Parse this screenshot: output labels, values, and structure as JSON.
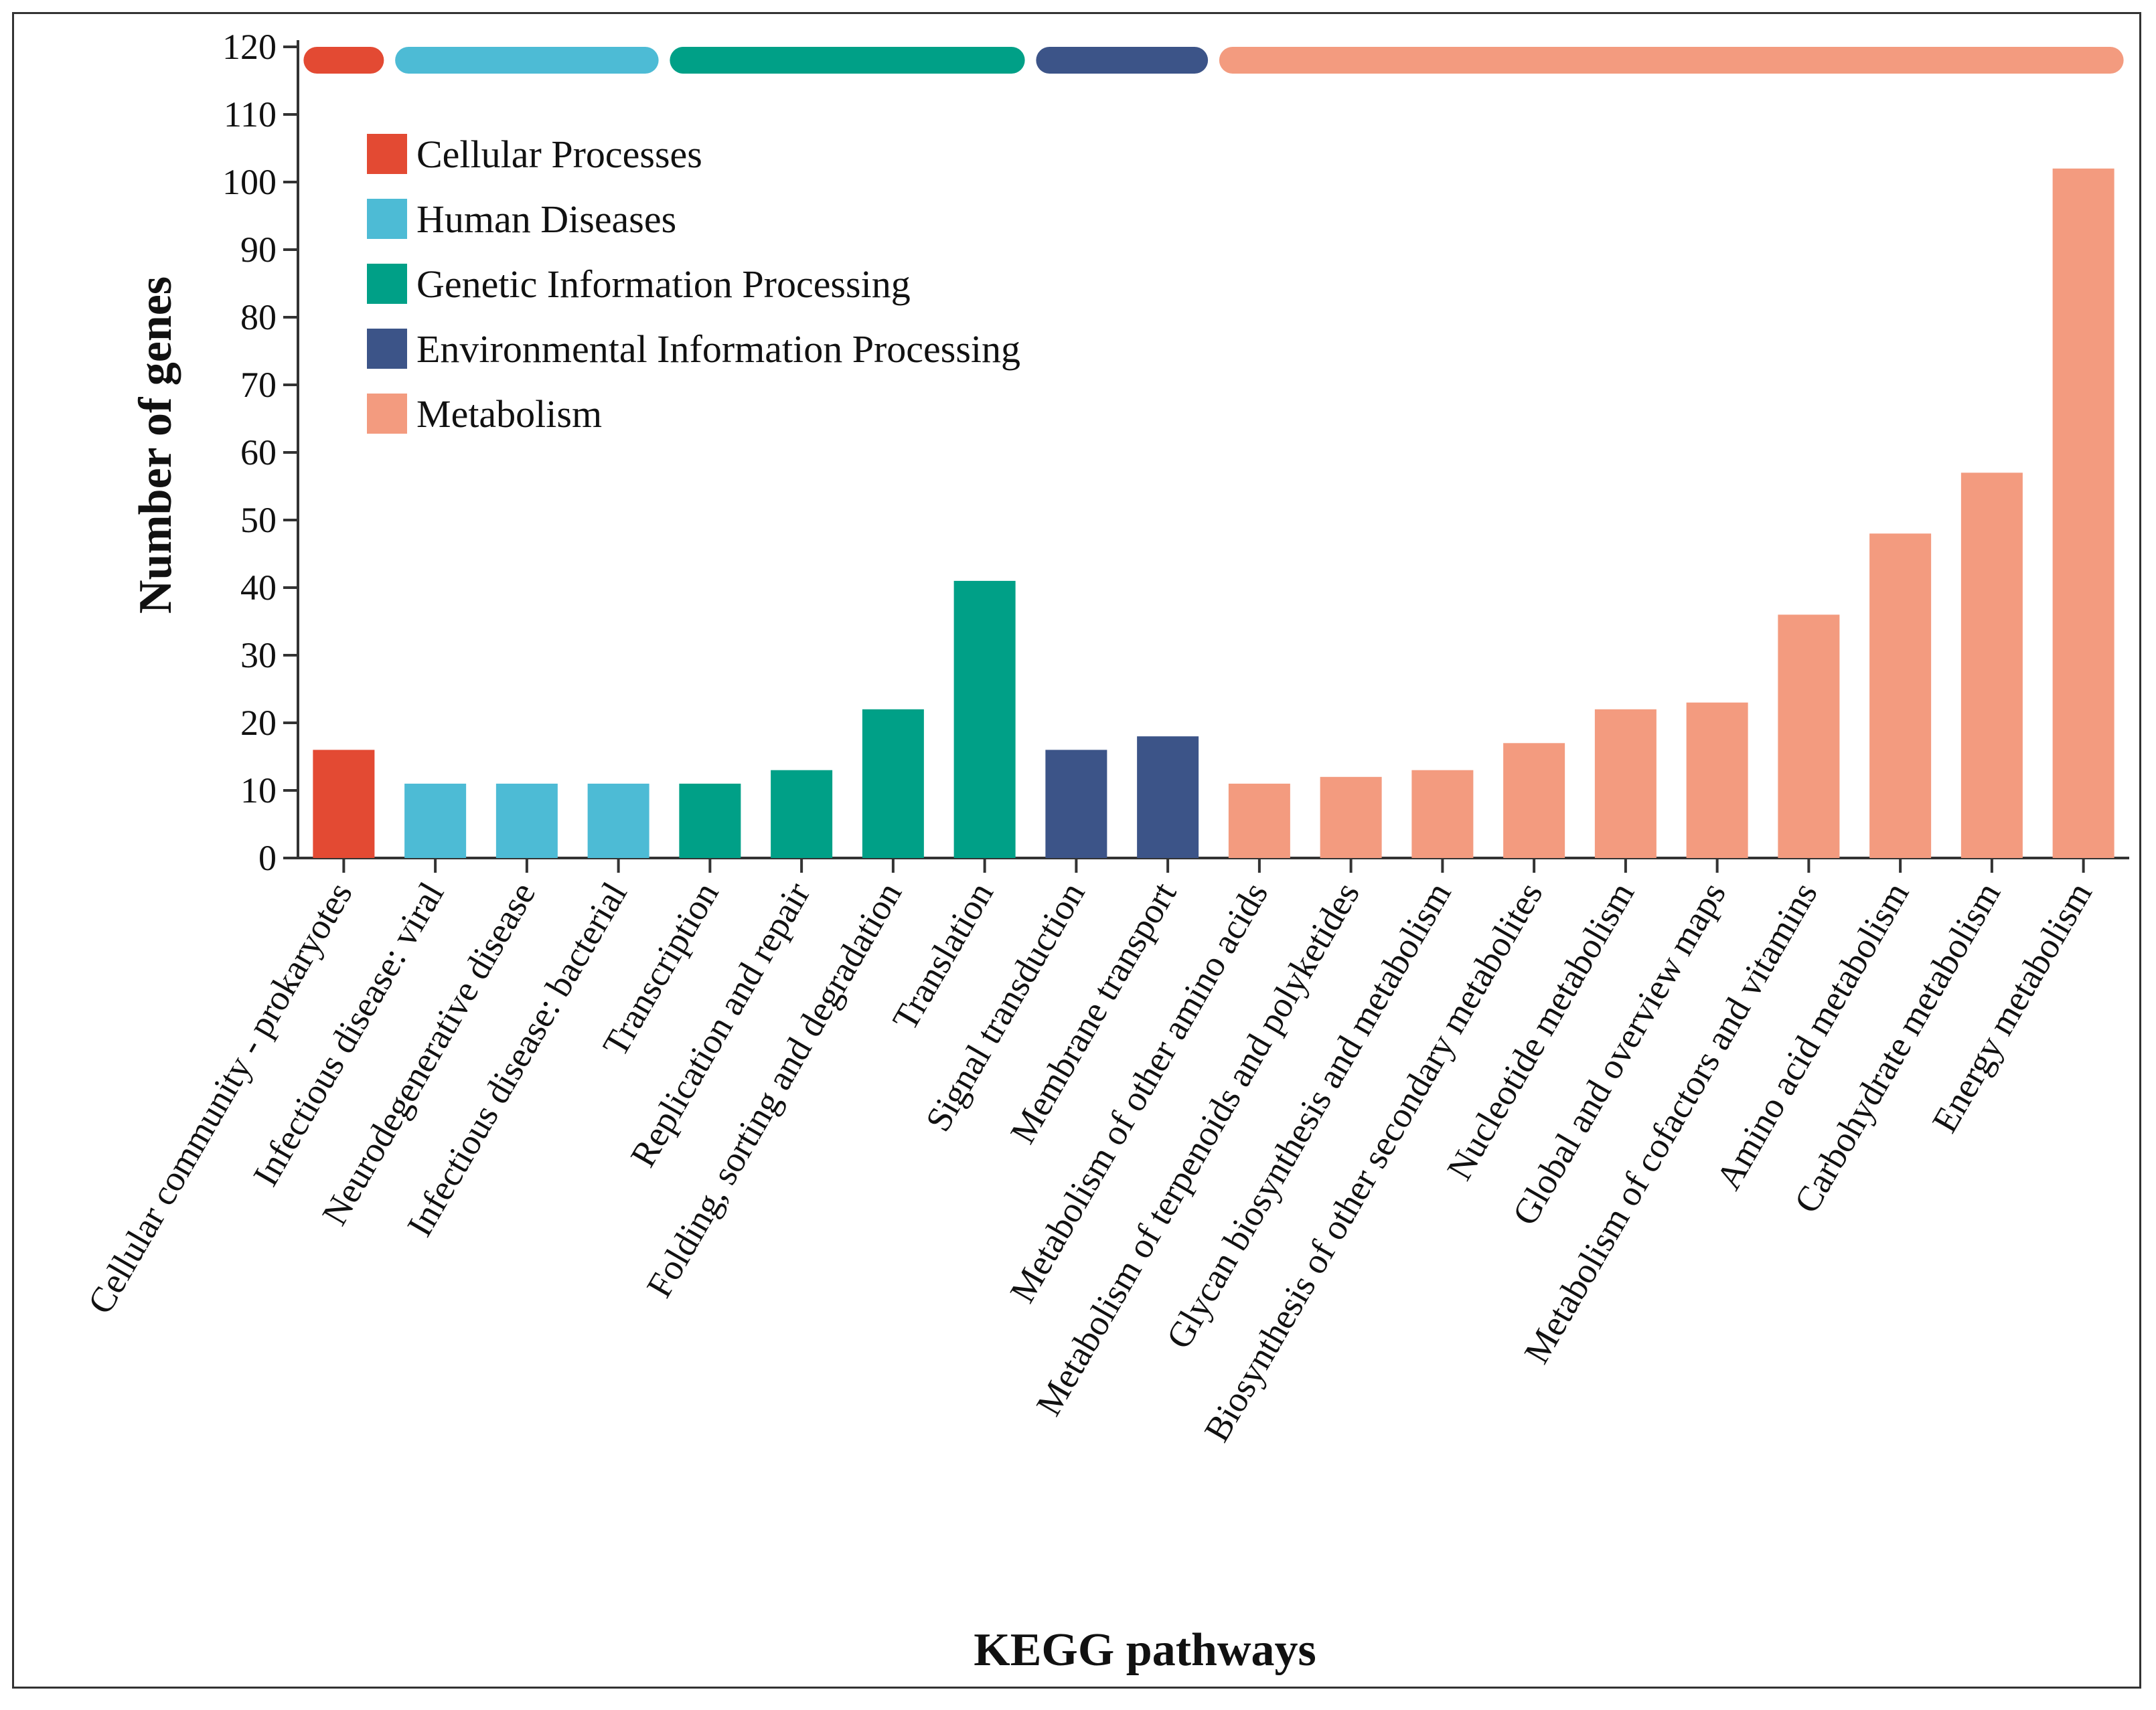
{
  "chart_data": {
    "type": "bar",
    "title": "",
    "xlabel": "KEGG pathways",
    "ylabel": "Number of genes",
    "ylim": [
      0,
      120
    ],
    "yticks": [
      0,
      10,
      20,
      30,
      40,
      50,
      60,
      70,
      80,
      90,
      100,
      110,
      120
    ],
    "legend_position": "top-left",
    "groups": [
      {
        "name": "Cellular Processes",
        "color": "#e34a33"
      },
      {
        "name": "Human Diseases",
        "color": "#4dbbd5"
      },
      {
        "name": "Genetic Information Processing",
        "color": "#00a087"
      },
      {
        "name": "Environmental Information Processing",
        "color": "#3c5488"
      },
      {
        "name": "Metabolism",
        "color": "#f39b7f"
      }
    ],
    "categories": [
      "Cellular community - prokaryotes",
      "Infectious disease: viral",
      "Neurodegenerative disease",
      "Infectious disease: bacterial",
      "Transcription",
      "Replication and repair",
      "Folding, sorting and degradation",
      "Translation",
      "Signal transduction",
      "Membrane transport",
      "Metabolism of other amino acids",
      "Metabolism of terpenoids and polyketides",
      "Glycan biosynthesis and metabolism",
      "Biosynthesis of other secondary metabolites",
      "Nucleotide metabolism",
      "Global and overview maps",
      "Metabolism of cofactors and vitamins",
      "Amino acid metabolism",
      "Carbohydrate metabolism",
      "Energy metabolism"
    ],
    "values": [
      16,
      11,
      11,
      11,
      11,
      13,
      22,
      41,
      16,
      18,
      11,
      12,
      13,
      17,
      22,
      23,
      36,
      48,
      57,
      102
    ],
    "group_index": [
      0,
      1,
      1,
      1,
      2,
      2,
      2,
      2,
      3,
      3,
      4,
      4,
      4,
      4,
      4,
      4,
      4,
      4,
      4,
      4
    ]
  }
}
